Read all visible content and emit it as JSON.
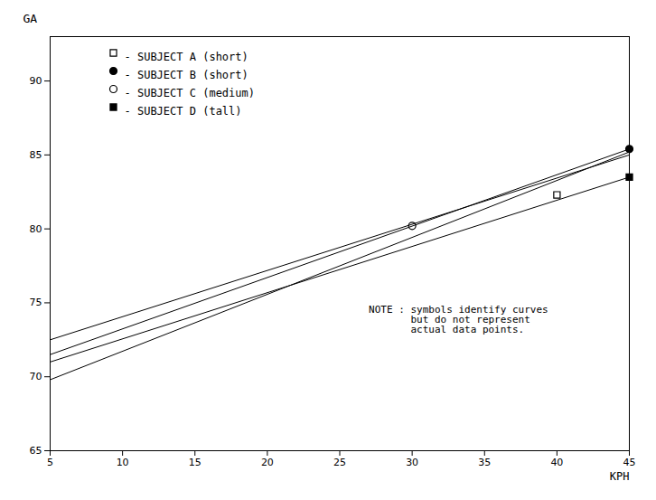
{
  "chart_data": {
    "type": "line",
    "xlabel": "KPH",
    "ylabel": "GA",
    "x": [
      5,
      45
    ],
    "xlim": [
      5,
      45
    ],
    "ylim": [
      65,
      93
    ],
    "xticks": [
      5,
      10,
      15,
      20,
      25,
      30,
      35,
      40,
      45
    ],
    "yticks": [
      65,
      70,
      75,
      80,
      85,
      90
    ],
    "grid": false,
    "legend": "upper left",
    "series": [
      {
        "name": "- SUBJECT A (short)",
        "color": "black",
        "marker": "open square",
        "values": [
          69.8,
          85.2
        ],
        "symbol_x": 40,
        "symbol_y": 82.3
      },
      {
        "name": "- SUBJECT B (short)",
        "color": "black",
        "marker": "filled circle",
        "values": [
          71.5,
          85.4
        ],
        "symbol_x": 45,
        "symbol_y": 85.4
      },
      {
        "name": "- SUBJECT C (medium)",
        "color": "black",
        "marker": "open circle",
        "values": [
          72.5,
          85.0
        ],
        "symbol_x": 30,
        "symbol_y": 80.2
      },
      {
        "name": "- SUBJECT D (tall)",
        "color": "black",
        "marker": "filled square",
        "values": [
          71.0,
          83.5
        ],
        "symbol_x": 45,
        "symbol_y": 83.5
      }
    ],
    "annotations": [
      {
        "text": "NOTE : symbols identify curves\n       but do not represent\n       actual data points.",
        "x": 27,
        "y": 74.8
      }
    ]
  }
}
